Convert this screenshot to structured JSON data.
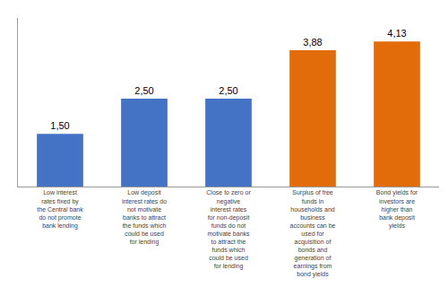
{
  "chart_data": {
    "type": "bar",
    "categories": [
      "Low interest\nrates fixed by\nthe Central bank\ndo not promote\nbank lending",
      "Low deposit\ninterest rates do\nnot motivate\nbanks to attract\nthe funds which\ncould be used\nfor lending",
      "Close to zero or\nnegative\ninterest rates\nfor non-deposit\nfunds do not\nmotivate banks\nto attract the\nfunds which\ncould be used\nfor lending",
      "Surplus of free\nfunds in\nhouseholds and\nbusiness\naccounts can be\nused for\nacquisition of\nbonds and\ngeneration of\nearnings from\nbond yields",
      "Bond yields for\ninvestors are\nhigher than\nbank deposit\nyields"
    ],
    "values": [
      1.5,
      2.5,
      2.5,
      3.88,
      4.13
    ],
    "value_labels": [
      "1,50",
      "2,50",
      "2,50",
      "3,88",
      "4,13"
    ],
    "colors": [
      "#4472C4",
      "#4472C4",
      "#4472C4",
      "#E26B0A",
      "#E26B0A"
    ],
    "ylim": [
      0,
      4.8
    ],
    "data_labels": true,
    "tick_labels": "x",
    "grid": false
  }
}
